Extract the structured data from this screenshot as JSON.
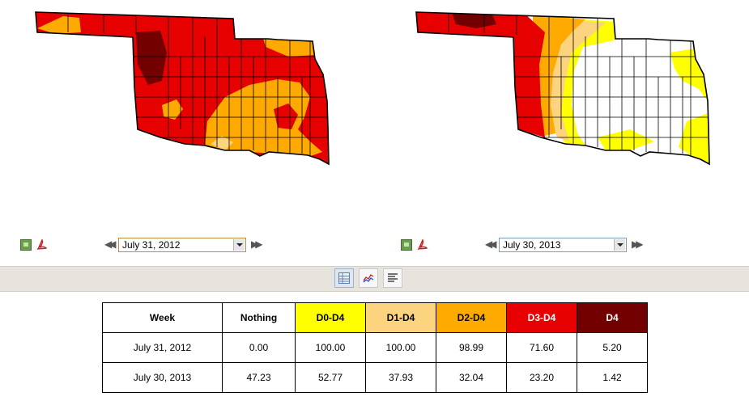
{
  "colors": {
    "none": "#ffffff",
    "d0": "#ffff00",
    "d1": "#fcd37f",
    "d2": "#ffaa00",
    "d3": "#e60000",
    "d4": "#730000"
  },
  "maps": [
    {
      "date": "July 31, 2012",
      "dominant": "d3",
      "zones": [
        "d3",
        "d4",
        "d2",
        "d1"
      ]
    },
    {
      "date": "July 30, 2013",
      "dominant": "none",
      "zones": [
        "none",
        "d0",
        "d1",
        "d2",
        "d3",
        "d4"
      ]
    }
  ],
  "icons": {
    "image": "image-icon",
    "pdf": "pdf-icon",
    "prev": "double-chevron-left-icon",
    "next": "double-chevron-right-icon",
    "table_view": "table-view-icon",
    "chart_view": "chart-view-icon",
    "text_view": "text-view-icon"
  },
  "controls": {
    "prev_glyph": "◀◀",
    "next_glyph": "▶▶"
  },
  "table": {
    "headers": [
      "Week",
      "Nothing",
      "D0-D4",
      "D1-D4",
      "D2-D4",
      "D3-D4",
      "D4"
    ],
    "rows": [
      [
        "July 31, 2012",
        "0.00",
        "100.00",
        "100.00",
        "98.99",
        "71.60",
        "5.20"
      ],
      [
        "July 30, 2013",
        "47.23",
        "52.77",
        "37.93",
        "32.04",
        "23.20",
        "1.42"
      ]
    ]
  }
}
